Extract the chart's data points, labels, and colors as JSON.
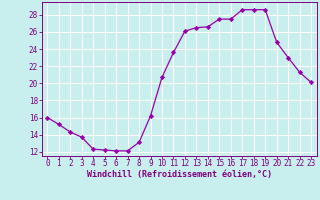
{
  "x": [
    0,
    1,
    2,
    3,
    4,
    5,
    6,
    7,
    8,
    9,
    10,
    11,
    12,
    13,
    14,
    15,
    16,
    17,
    18,
    19,
    20,
    21,
    22,
    23
  ],
  "y": [
    16,
    15.2,
    14.3,
    13.7,
    12.3,
    12.2,
    12.1,
    12.1,
    13.1,
    16.2,
    20.7,
    23.6,
    26.1,
    26.5,
    26.6,
    27.5,
    27.5,
    28.6,
    28.6,
    28.6,
    24.8,
    23.0,
    21.3,
    20.1
  ],
  "line_color": "#9900aa",
  "marker": "D",
  "marker_size": 2.2,
  "bg_color": "#c8eeee",
  "grid_color": "#aadddd",
  "xlabel": "Windchill (Refroidissement éolien,°C)",
  "xlim": [
    -0.5,
    23.5
  ],
  "ylim": [
    11.5,
    29.5
  ],
  "yticks": [
    12,
    14,
    16,
    18,
    20,
    22,
    24,
    26,
    28
  ],
  "xticks": [
    0,
    1,
    2,
    3,
    4,
    5,
    6,
    7,
    8,
    9,
    10,
    11,
    12,
    13,
    14,
    15,
    16,
    17,
    18,
    19,
    20,
    21,
    22,
    23
  ],
  "xlabel_color": "#800080",
  "tick_color": "#800080",
  "spine_color": "#800080",
  "tick_fontsize": 5.5,
  "xlabel_fontsize": 6.0
}
